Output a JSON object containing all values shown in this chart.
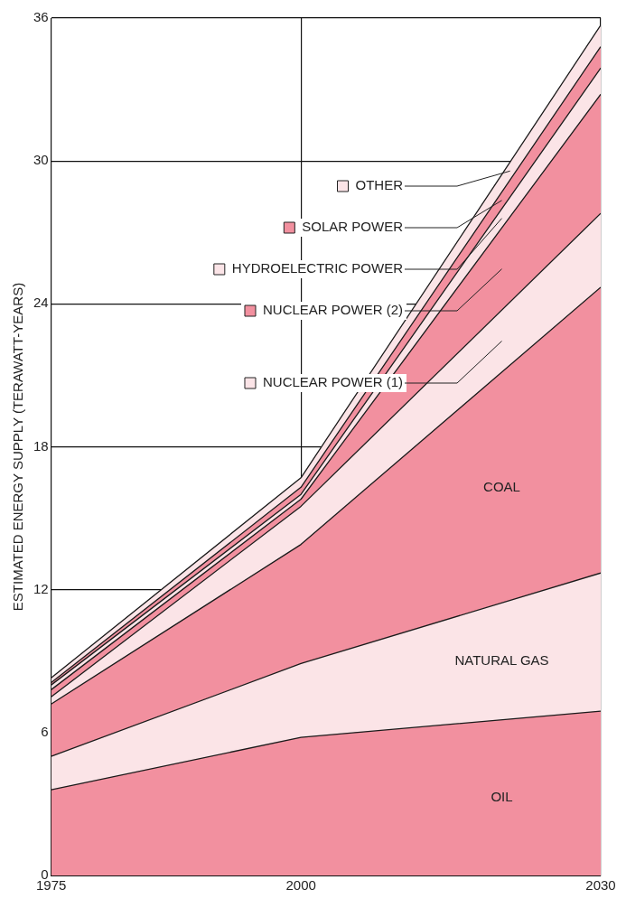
{
  "chart_data": {
    "type": "area",
    "stacked": true,
    "ylabel": "ESTIMATED ENERGY SUPPLY (TERAWATT-YEARS)",
    "x": [
      1975,
      2000,
      2030
    ],
    "xlim": [
      1975,
      2030
    ],
    "xticks": [
      1975,
      2000,
      2030
    ],
    "ylim": [
      0,
      36
    ],
    "yticks": [
      0,
      6,
      12,
      18,
      24,
      30,
      36
    ],
    "grid": true,
    "legend": "top",
    "series": [
      {
        "name": "OIL",
        "color": "#f2909f",
        "values": [
          3.6,
          5.8,
          6.9
        ]
      },
      {
        "name": "NATURAL GAS",
        "color": "#fbe4e7",
        "values": [
          1.4,
          3.1,
          5.8
        ]
      },
      {
        "name": "COAL",
        "color": "#f2909f",
        "values": [
          2.2,
          5.0,
          12.0
        ]
      },
      {
        "name": "NUCLEAR POWER (1)",
        "color": "#fbe4e7",
        "values": [
          0.3,
          1.6,
          3.1
        ]
      },
      {
        "name": "NUCLEAR POWER (2)",
        "color": "#f2909f",
        "values": [
          0.3,
          0.3,
          5.0
        ]
      },
      {
        "name": "HYDROELECTRIC POWER",
        "color": "#fbe4e7",
        "values": [
          0.2,
          0.2,
          1.1
        ]
      },
      {
        "name": "SOLAR POWER",
        "color": "#f2909f",
        "values": [
          0.1,
          0.3,
          0.9
        ]
      },
      {
        "name": "OTHER",
        "color": "#fbe4e7",
        "values": [
          0.2,
          0.4,
          0.9
        ]
      }
    ]
  }
}
